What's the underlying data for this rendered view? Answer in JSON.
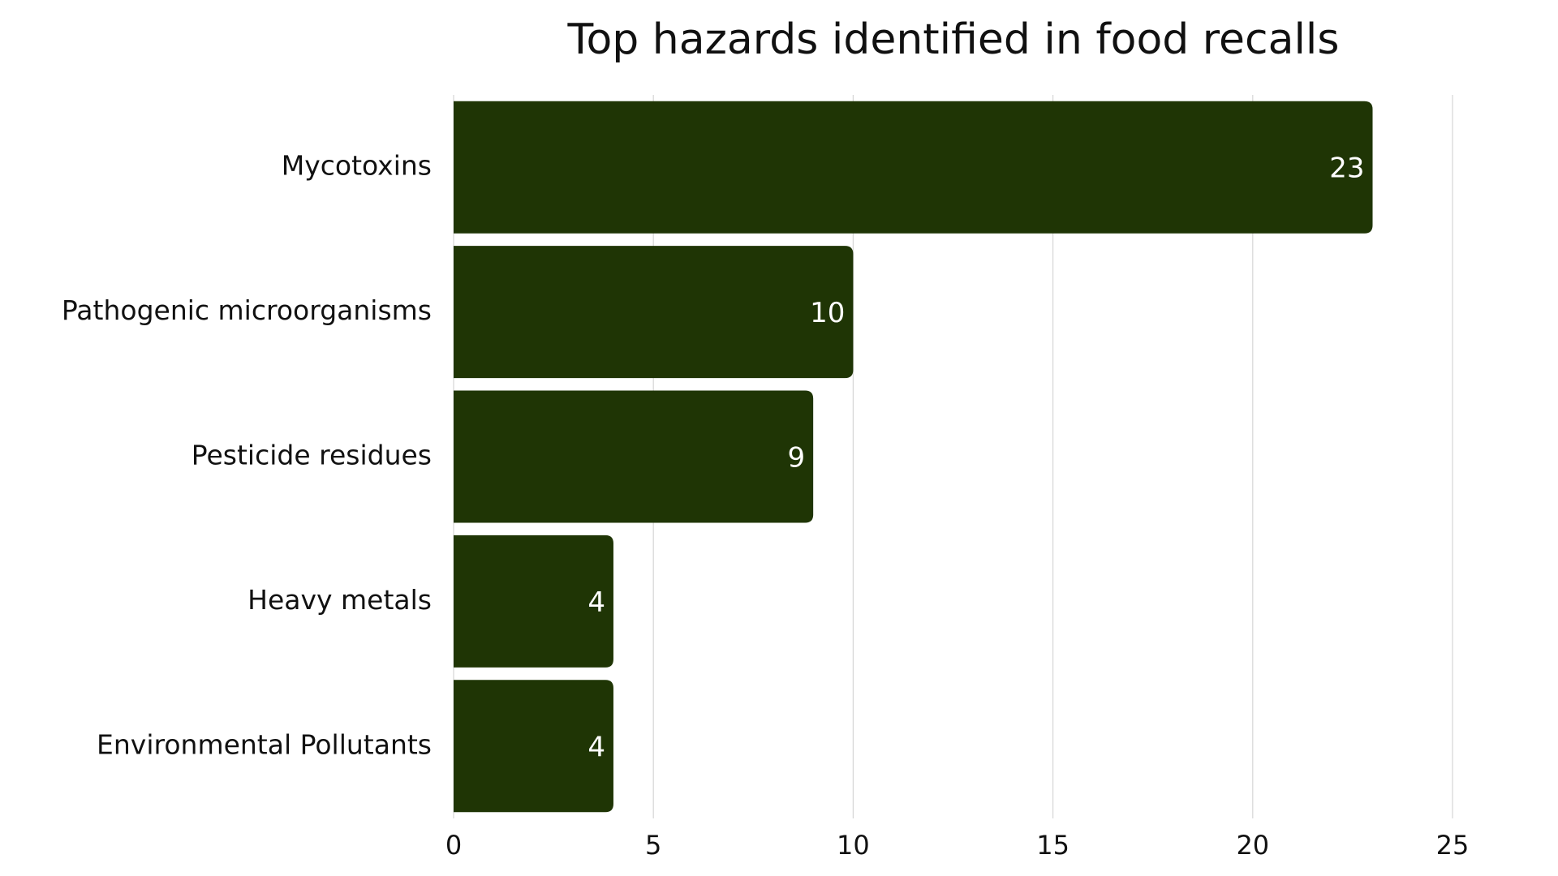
{
  "chart_data": {
    "type": "bar",
    "orientation": "horizontal",
    "title": "Top hazards identified in food recalls",
    "categories": [
      "Mycotoxins",
      "Pathogenic microorganisms",
      "Pesticide residues",
      "Heavy metals",
      "Environmental Pollutants"
    ],
    "values": [
      23,
      10,
      9,
      4,
      4
    ],
    "color": "#1f3505",
    "xlim": [
      0,
      25
    ],
    "xticks": [
      0,
      5,
      10,
      15,
      20,
      25
    ],
    "grid": true
  }
}
